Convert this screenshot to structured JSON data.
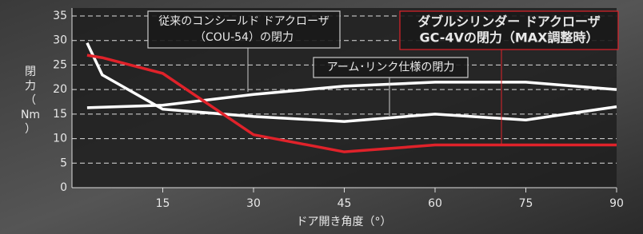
{
  "chart_data": {
    "type": "line",
    "x": [
      2.5,
      5,
      15,
      30,
      45,
      60,
      75,
      90
    ],
    "series": [
      {
        "label": [
          "従来のコンシールド ドアクローザ",
          "（COU-54）の閉力"
        ],
        "color": "#ffffff",
        "values": [
          29.5,
          23,
          16,
          14.5,
          13.5,
          15,
          13.8,
          16.5
        ]
      },
      {
        "label": [
          "アーム･リンク仕様の閉力"
        ],
        "color": "#ffffff",
        "values": [
          16.3,
          16.4,
          16.8,
          19,
          20.7,
          21.5,
          21.5,
          20
        ]
      },
      {
        "label": [
          "ダブルシリンダー ドアクローザ",
          "GC-4Vの閉力（MAX調整時）"
        ],
        "color": "#e0222a",
        "values": [
          27,
          26.5,
          23.3,
          10.8,
          7.3,
          8.7,
          8.7,
          8.7
        ]
      }
    ],
    "xlim": [
      0,
      90
    ],
    "xticks": [
      15,
      30,
      45,
      60,
      75,
      90
    ],
    "ylim": [
      0,
      35
    ],
    "yticks": [
      0,
      5,
      10,
      15,
      20,
      25,
      30,
      35
    ],
    "xlabel": "ドア開き角度（°）",
    "ylabel": [
      "閉",
      "力",
      "（",
      "Nm",
      "）"
    ],
    "grid": true
  }
}
